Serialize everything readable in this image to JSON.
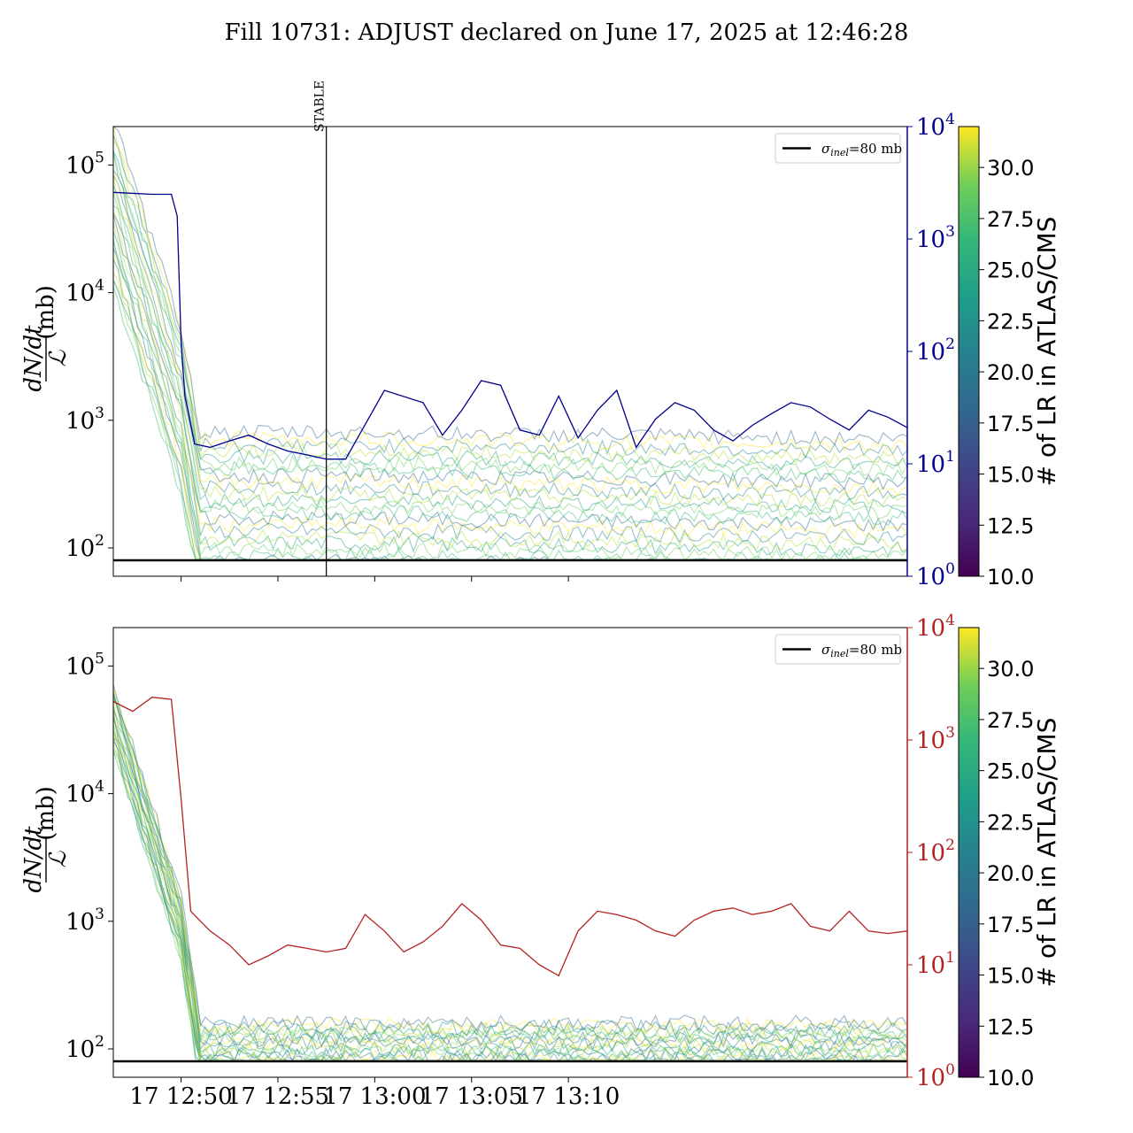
{
  "title": "Fill 10731: ADJUST declared on June 17, 2025 at 12:46:28",
  "chart_data": [
    {
      "type": "line",
      "panel": "top",
      "ylabel_num": "dN/dt",
      "ylabel_den": "ℒ",
      "ylabel_unit": "(mb)",
      "yscale": "log",
      "ylim": [
        60,
        200000
      ],
      "left_ticks": [
        {
          "label": "10",
          "exp": "2",
          "value": 100
        },
        {
          "label": "10",
          "exp": "3",
          "value": 1000
        },
        {
          "label": "10",
          "exp": "4",
          "value": 10000
        },
        {
          "label": "10",
          "exp": "5",
          "value": 100000
        }
      ],
      "right_axis": {
        "yscale": "log",
        "ylim": [
          1,
          10000
        ],
        "color": "#00008b",
        "ticks": [
          {
            "label": "10",
            "exp": "0",
            "value": 1
          },
          {
            "label": "10",
            "exp": "1",
            "value": 10
          },
          {
            "label": "10",
            "exp": "2",
            "value": 100
          },
          {
            "label": "10",
            "exp": "3",
            "value": 1000
          },
          {
            "label": "10",
            "exp": "4",
            "value": 10000
          }
        ],
        "series_x_min": [
          0,
          2,
          3,
          3.3,
          3.5,
          3.7,
          4.2,
          5,
          6,
          7,
          8,
          9,
          10,
          11,
          12,
          14,
          16,
          17,
          18,
          19,
          20,
          21,
          22,
          23,
          24,
          25,
          26,
          27,
          28,
          29,
          30,
          31,
          32,
          33,
          34,
          35,
          36,
          37,
          38,
          39,
          40,
          41
        ],
        "series_values": [
          2600,
          2500,
          2500,
          1600,
          120,
          40,
          15,
          14,
          16,
          18,
          15,
          13,
          12,
          11,
          11,
          45,
          35,
          18,
          30,
          55,
          50,
          20,
          18,
          40,
          17,
          30,
          45,
          14,
          25,
          35,
          30,
          20,
          16,
          22,
          28,
          35,
          32,
          25,
          20,
          30,
          26,
          21
        ]
      },
      "vline": {
        "x_min": 11,
        "label": "STABLE"
      },
      "hline": {
        "value": 80
      },
      "legend": {
        "label_sigma": "σ",
        "label_sub": "inel",
        "label_rest": "=80 mb",
        "placement": "upper right"
      },
      "band": {
        "x_min": [
          0,
          3.5,
          4.5,
          11,
          41
        ],
        "median": [
          50000,
          1200,
          180,
          180,
          160
        ]
      },
      "colorbar": {
        "label": "# of LR in ATLAS/CMS",
        "range": [
          10.0,
          32.0
        ],
        "ticks": [
          "10.0",
          "12.5",
          "15.0",
          "17.5",
          "20.0",
          "22.5",
          "25.0",
          "27.5",
          "30.0"
        ]
      }
    },
    {
      "type": "line",
      "panel": "bottom",
      "ylabel_num": "dN/dt",
      "ylabel_den": "ℒ",
      "ylabel_unit": "(mb)",
      "yscale": "log",
      "ylim": [
        60,
        200000
      ],
      "left_ticks": [
        {
          "label": "10",
          "exp": "2",
          "value": 100
        },
        {
          "label": "10",
          "exp": "3",
          "value": 1000
        },
        {
          "label": "10",
          "exp": "4",
          "value": 10000
        },
        {
          "label": "10",
          "exp": "5",
          "value": 100000
        }
      ],
      "right_axis": {
        "yscale": "log",
        "ylim": [
          1,
          10000
        ],
        "color": "#b22222",
        "ticks": [
          {
            "label": "10",
            "exp": "0",
            "value": 1
          },
          {
            "label": "10",
            "exp": "1",
            "value": 10
          },
          {
            "label": "10",
            "exp": "2",
            "value": 100
          },
          {
            "label": "10",
            "exp": "3",
            "value": 1000
          },
          {
            "label": "10",
            "exp": "4",
            "value": 10000
          }
        ],
        "series_x_min": [
          0,
          1,
          2,
          3,
          3.5,
          4,
          5,
          6,
          7,
          8,
          9,
          10,
          11,
          12,
          13,
          14,
          15,
          16,
          17,
          18,
          19,
          20,
          21,
          22,
          23,
          24,
          25,
          26,
          27,
          28,
          29,
          30,
          31,
          32,
          33,
          34,
          35,
          36,
          37,
          38,
          39,
          40,
          41
        ],
        "series_values": [
          2200,
          1800,
          2400,
          2300,
          300,
          30,
          20,
          15,
          10,
          12,
          15,
          14,
          13,
          14,
          28,
          20,
          13,
          16,
          22,
          35,
          25,
          15,
          14,
          10,
          8,
          20,
          30,
          28,
          25,
          20,
          18,
          25,
          30,
          32,
          28,
          30,
          35,
          22,
          20,
          30,
          20,
          19,
          20
        ]
      },
      "hline": {
        "value": 80
      },
      "legend": {
        "label_sigma": "σ",
        "label_sub": "inel",
        "label_rest": "=80 mb",
        "placement": "upper right"
      },
      "band": {
        "x_min": [
          0,
          3.5,
          4.5,
          41
        ],
        "median": [
          40000,
          900,
          90,
          90
        ]
      },
      "colorbar": {
        "label": "# of LR in ATLAS/CMS",
        "range": [
          10.0,
          32.0
        ],
        "ticks": [
          "10.0",
          "12.5",
          "15.0",
          "17.5",
          "20.0",
          "22.5",
          "25.0",
          "27.5",
          "30.0"
        ]
      }
    }
  ],
  "xaxis": {
    "range_min": [
      0,
      41
    ],
    "ticks": [
      {
        "label": "17 12:50",
        "x_min": 3.5
      },
      {
        "label": "17 12:55",
        "x_min": 8.5
      },
      {
        "label": "17 13:00",
        "x_min": 13.5
      },
      {
        "label": "17 13:05",
        "x_min": 18.5
      },
      {
        "label": "17 13:10",
        "x_min": 23.5
      }
    ]
  }
}
